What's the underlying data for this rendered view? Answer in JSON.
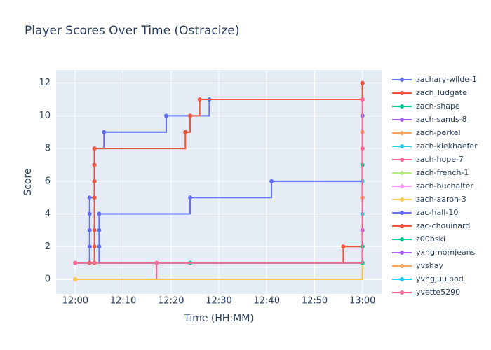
{
  "chart_data": {
    "type": "step-line",
    "title": "Player Scores Over Time (Ostracize)",
    "x_label": "Time (HH:MM)",
    "y_label": "Score",
    "xlim": [
      "11:56",
      "13:04"
    ],
    "xticks": [
      "12:00",
      "12:10",
      "12:20",
      "12:30",
      "12:40",
      "12:50",
      "13:00"
    ],
    "ylim": [
      -0.9,
      12.8
    ],
    "yticks": [
      0,
      2,
      4,
      6,
      8,
      10,
      12
    ],
    "grid": true,
    "legend": "right",
    "series": [
      {
        "name": "zachary-wilde-1",
        "color": "#636efa",
        "x": [
          "12:00",
          "12:03",
          "12:03",
          "12:03",
          "12:03",
          "12:04",
          "12:04",
          "12:04",
          "12:06",
          "12:19",
          "12:28",
          "13:00"
        ],
        "values": [
          1,
          2,
          3,
          4,
          5,
          6,
          7,
          8,
          9,
          10,
          11,
          12
        ]
      },
      {
        "name": "zach_ludgate",
        "color": "#EF553B",
        "x": [
          "12:00",
          "12:04",
          "12:04",
          "12:04",
          "12:04",
          "12:04",
          "12:04",
          "12:04",
          "12:23",
          "12:24",
          "12:26",
          "13:00",
          "13:00"
        ],
        "values": [
          1,
          1,
          2,
          3,
          5,
          6,
          7,
          8,
          9,
          10,
          11,
          11,
          12
        ]
      },
      {
        "name": "zach-shape",
        "color": "#00cc96",
        "x": [
          "12:24",
          "13:00",
          "13:00"
        ],
        "values": [
          1,
          1,
          7
        ]
      },
      {
        "name": "zach-sands-8",
        "color": "#ab63fa",
        "x": [
          "12:00",
          "13:00",
          "13:00"
        ],
        "values": [
          1,
          1,
          5
        ]
      },
      {
        "name": "zach-perkel",
        "color": "#FFA15A",
        "x": [
          "12:00",
          "13:00",
          "13:00"
        ],
        "values": [
          0,
          1,
          9
        ]
      },
      {
        "name": "zach-kiekhaefer",
        "color": "#19d3f3",
        "x": [
          "12:00",
          "13:00",
          "13:00"
        ],
        "values": [
          1,
          1,
          6
        ]
      },
      {
        "name": "zach-hope-7",
        "color": "#FF6692",
        "x": [
          "12:00",
          "12:17",
          "13:00",
          "13:00"
        ],
        "values": [
          0,
          1,
          1,
          8
        ]
      },
      {
        "name": "zach-french-1",
        "color": "#B6E880",
        "x": [
          "12:00",
          "13:00"
        ],
        "values": [
          1,
          4
        ]
      },
      {
        "name": "zach-buchalter",
        "color": "#FF97FF",
        "x": [
          "12:00",
          "13:00"
        ],
        "values": [
          0,
          2
        ]
      },
      {
        "name": "zach-aaron-3",
        "color": "#FECB52",
        "x": [
          "12:00",
          "13:00"
        ],
        "values": [
          0,
          1
        ]
      },
      {
        "name": "zac-hall-10",
        "color": "#636efa",
        "x": [
          "12:03",
          "12:05",
          "12:05",
          "12:05",
          "12:24",
          "12:41",
          "13:00"
        ],
        "values": [
          1,
          2,
          3,
          4,
          5,
          6,
          10
        ]
      },
      {
        "name": "zac-chouinard",
        "color": "#EF553B",
        "x": [
          "12:03",
          "12:56",
          "13:00",
          "13:00"
        ],
        "values": [
          1,
          2,
          2,
          3
        ]
      },
      {
        "name": "z00bski",
        "color": "#00cc96",
        "x": [
          "12:00",
          "13:00",
          "13:00"
        ],
        "values": [
          1,
          1,
          2
        ]
      },
      {
        "name": "yxngmomjeans",
        "color": "#ab63fa",
        "x": [
          "12:00",
          "13:00"
        ],
        "values": [
          1,
          3
        ]
      },
      {
        "name": "yvshay",
        "color": "#FFA15A",
        "x": [
          "12:00",
          "13:00"
        ],
        "values": [
          1,
          5
        ]
      },
      {
        "name": "yvngjuulpod",
        "color": "#19d3f3",
        "x": [
          "12:00",
          "13:00"
        ],
        "values": [
          1,
          4
        ]
      },
      {
        "name": "yvette5290",
        "color": "#FF6692",
        "x": [
          "12:00",
          "13:00"
        ],
        "values": [
          1,
          11
        ]
      }
    ]
  }
}
